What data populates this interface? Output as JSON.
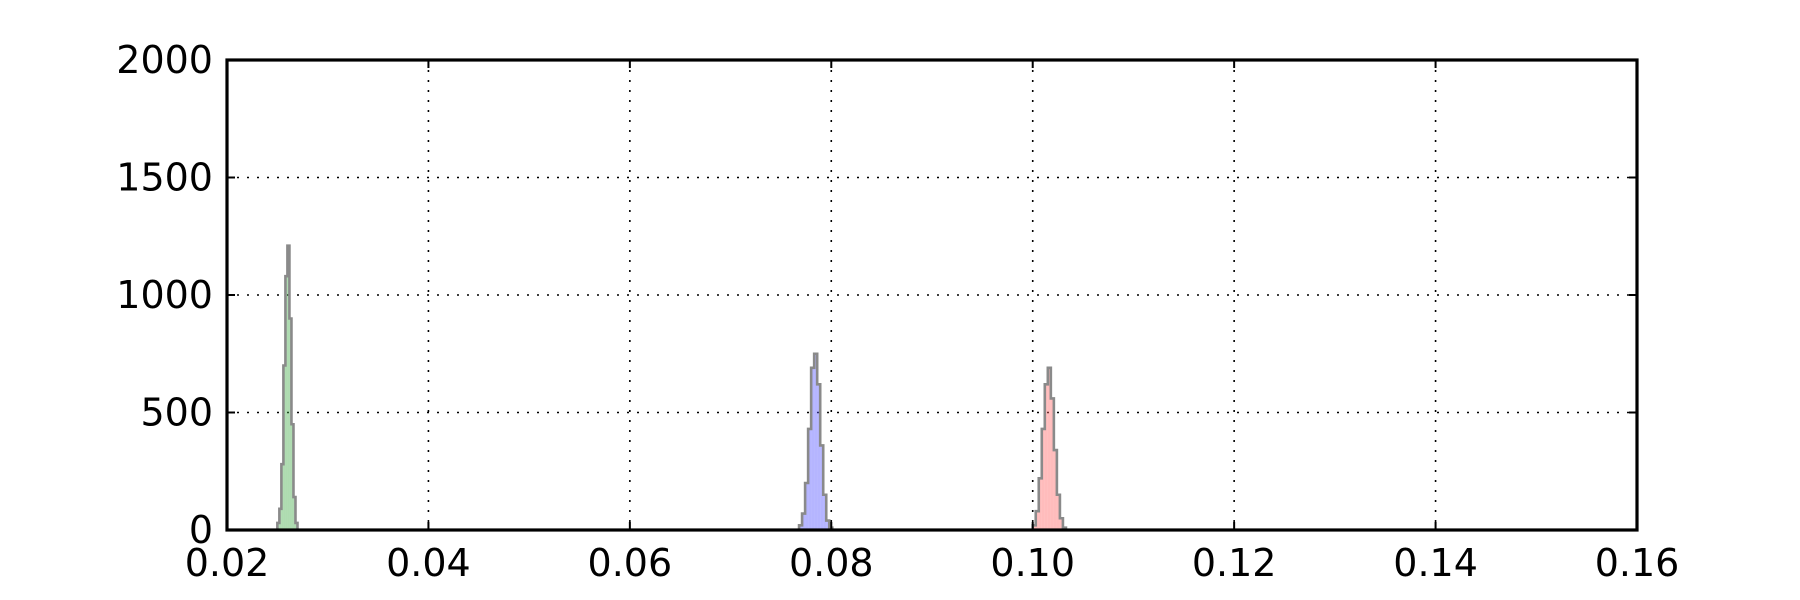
{
  "chart_data": {
    "type": "histogram",
    "title": "",
    "xlabel": "",
    "ylabel": "",
    "xlim": [
      0.02,
      0.16
    ],
    "ylim": [
      0,
      2000
    ],
    "grid": true,
    "legend": "none",
    "x_ticks": [
      "0.02",
      "0.04",
      "0.06",
      "0.08",
      "0.10",
      "0.12",
      "0.14",
      "0.16"
    ],
    "y_ticks": [
      "0",
      "500",
      "1000",
      "1500",
      "2000"
    ],
    "series": [
      {
        "color": "#4caf50",
        "bins": [
          {
            "x0": 0.025,
            "x1": 0.0252,
            "count": 30
          },
          {
            "x0": 0.0252,
            "x1": 0.0254,
            "count": 90
          },
          {
            "x0": 0.0254,
            "x1": 0.0256,
            "count": 280
          },
          {
            "x0": 0.0256,
            "x1": 0.0258,
            "count": 700
          },
          {
            "x0": 0.0258,
            "x1": 0.026,
            "count": 1080
          },
          {
            "x0": 0.026,
            "x1": 0.0262,
            "count": 1210
          },
          {
            "x0": 0.0262,
            "x1": 0.0264,
            "count": 900
          },
          {
            "x0": 0.0264,
            "x1": 0.0266,
            "count": 450
          },
          {
            "x0": 0.0266,
            "x1": 0.0268,
            "count": 140
          },
          {
            "x0": 0.0268,
            "x1": 0.027,
            "count": 30
          }
        ]
      },
      {
        "color": "#5b5bff",
        "bins": [
          {
            "x0": 0.0768,
            "x1": 0.0771,
            "count": 20
          },
          {
            "x0": 0.0771,
            "x1": 0.0774,
            "count": 70
          },
          {
            "x0": 0.0774,
            "x1": 0.0777,
            "count": 200
          },
          {
            "x0": 0.0777,
            "x1": 0.078,
            "count": 430
          },
          {
            "x0": 0.078,
            "x1": 0.0783,
            "count": 690
          },
          {
            "x0": 0.0783,
            "x1": 0.0786,
            "count": 750
          },
          {
            "x0": 0.0786,
            "x1": 0.0789,
            "count": 620
          },
          {
            "x0": 0.0789,
            "x1": 0.0792,
            "count": 360
          },
          {
            "x0": 0.0792,
            "x1": 0.0795,
            "count": 150
          },
          {
            "x0": 0.0795,
            "x1": 0.0798,
            "count": 40
          },
          {
            "x0": 0.0798,
            "x1": 0.0801,
            "count": 10
          }
        ]
      },
      {
        "color": "#ff6b6b",
        "bins": [
          {
            "x0": 0.1,
            "x1": 0.1003,
            "count": 20
          },
          {
            "x0": 0.1003,
            "x1": 0.1006,
            "count": 80
          },
          {
            "x0": 0.1006,
            "x1": 0.1009,
            "count": 220
          },
          {
            "x0": 0.1009,
            "x1": 0.1012,
            "count": 430
          },
          {
            "x0": 0.1012,
            "x1": 0.1015,
            "count": 620
          },
          {
            "x0": 0.1015,
            "x1": 0.1018,
            "count": 690
          },
          {
            "x0": 0.1018,
            "x1": 0.1021,
            "count": 560
          },
          {
            "x0": 0.1021,
            "x1": 0.1024,
            "count": 340
          },
          {
            "x0": 0.1024,
            "x1": 0.1027,
            "count": 150
          },
          {
            "x0": 0.1027,
            "x1": 0.103,
            "count": 50
          },
          {
            "x0": 0.103,
            "x1": 0.1033,
            "count": 10
          }
        ]
      }
    ]
  }
}
